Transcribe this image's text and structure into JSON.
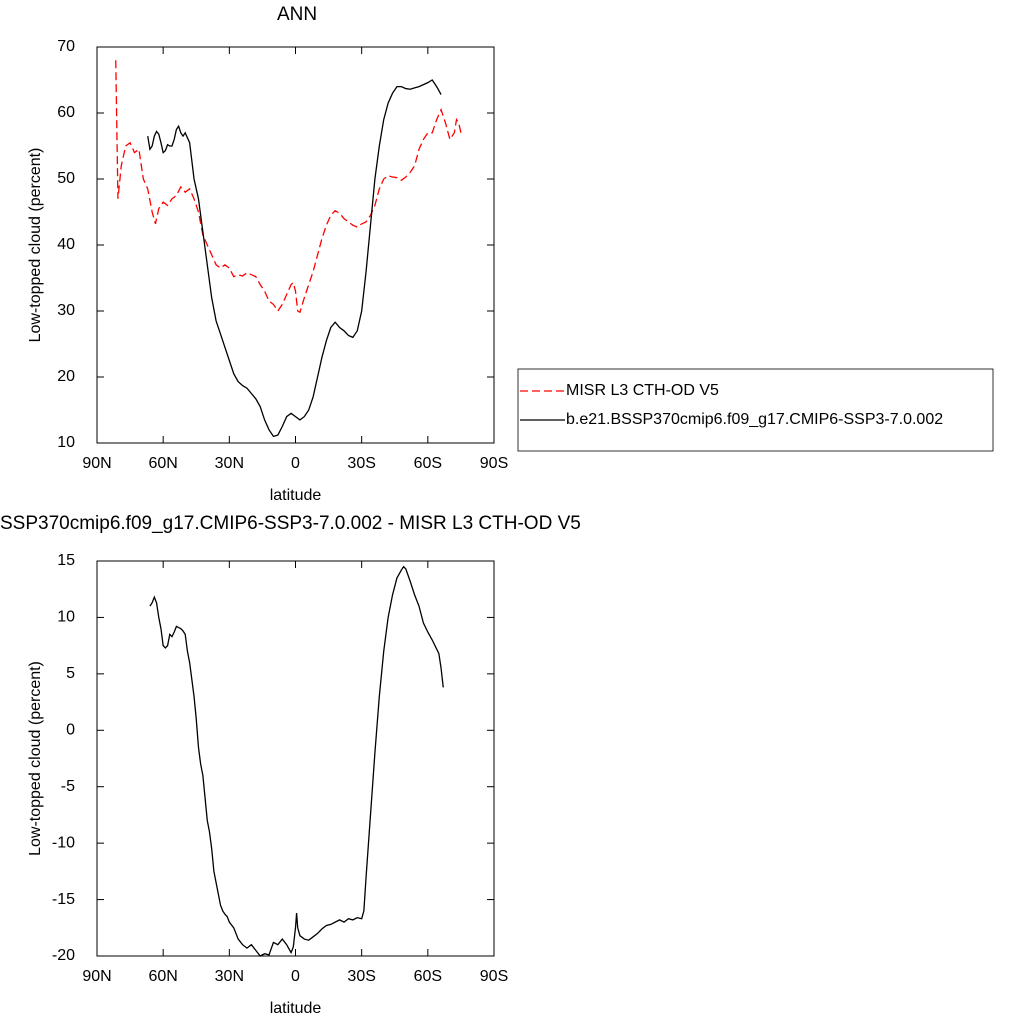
{
  "chart_data": [
    {
      "type": "line",
      "title": "ANN",
      "xlabel": "latitude",
      "ylabel": "Low-topped cloud (percent)",
      "xlim": [
        90,
        -90
      ],
      "xticks": [
        {
          "value": 90,
          "label": "90N"
        },
        {
          "value": 60,
          "label": "60N"
        },
        {
          "value": 30,
          "label": "30N"
        },
        0,
        {
          "value": -30,
          "label": "30S"
        },
        {
          "value": -60,
          "label": "60S"
        },
        {
          "value": -90,
          "label": "90S"
        }
      ],
      "ylim": [
        10,
        70
      ],
      "yticks": [
        10,
        20,
        30,
        40,
        50,
        60,
        70
      ],
      "legend": "right",
      "series": [
        {
          "name": "MISR L3 CTH-OD V5",
          "color": "#ff0000",
          "style": "dashed",
          "x": [
            81.5,
            80.5,
            79,
            77,
            75,
            73,
            71,
            69,
            67,
            65,
            63.5,
            62,
            60,
            58,
            56,
            54,
            52,
            50,
            48,
            46,
            44,
            42,
            40,
            38,
            36,
            34,
            32,
            30,
            28,
            26,
            24,
            22,
            20,
            18,
            16,
            14,
            12,
            10,
            8,
            6,
            4,
            2,
            1,
            0,
            -1,
            -2,
            -4,
            -6,
            -8,
            -10,
            -12,
            -14,
            -16,
            -18,
            -20,
            -22,
            -24,
            -26,
            -28,
            -30,
            -32,
            -34,
            -36,
            -38,
            -40,
            -42,
            -44,
            -46,
            -48,
            -50,
            -52,
            -54,
            -56,
            -58,
            -60,
            -62,
            -64,
            -66,
            -68,
            -70,
            -72,
            -73,
            -74,
            -75
          ],
          "values": [
            68,
            47,
            52,
            55,
            55.5,
            54,
            54.5,
            50,
            48.5,
            45,
            43.2,
            45.5,
            46.5,
            46,
            47,
            47.5,
            48.8,
            48,
            48.5,
            47,
            45,
            41.5,
            40,
            38.5,
            37,
            36.5,
            37,
            36.5,
            35.2,
            35.5,
            35.3,
            35.8,
            35.5,
            35.2,
            34,
            33,
            31.5,
            31,
            30,
            31,
            32.5,
            34,
            34.3,
            33,
            30,
            29.8,
            32,
            34,
            36,
            38.5,
            41,
            43,
            44.5,
            45.2,
            44.8,
            44,
            43.5,
            43,
            42.7,
            43.2,
            43.5,
            44.5,
            46,
            48.5,
            50,
            50.5,
            50.3,
            50.2,
            49.8,
            50.3,
            51,
            52,
            54.5,
            56,
            57,
            57,
            59,
            60.5,
            58.5,
            56,
            57,
            59,
            58.5,
            57
          ]
        },
        {
          "name": "b.e21.BSSP370cmip6.f09_g17.CMIP6-SSP3-7.0.002",
          "color": "#000000",
          "style": "solid",
          "x": [
            67,
            66,
            65,
            64,
            63,
            62,
            61,
            60,
            59,
            58,
            57,
            56,
            55,
            54,
            53,
            52,
            51,
            50,
            48,
            46,
            44,
            42,
            40,
            38,
            36,
            34,
            32,
            30,
            28,
            26,
            24,
            22,
            20,
            18,
            16,
            14,
            12,
            10,
            8,
            6,
            4,
            2,
            0,
            -2,
            -4,
            -6,
            -8,
            -10,
            -12,
            -14,
            -16,
            -18,
            -20,
            -22,
            -24,
            -26,
            -28,
            -30,
            -32,
            -34,
            -36,
            -38,
            -40,
            -42,
            -44,
            -46,
            -48,
            -50,
            -52,
            -54,
            -56,
            -58,
            -60,
            -62,
            -64,
            -66
          ],
          "values": [
            56.5,
            54.5,
            55,
            56.5,
            57.2,
            56.8,
            55.5,
            54,
            54.3,
            55.2,
            55,
            55,
            56,
            57.5,
            58,
            57,
            56.5,
            57,
            55.5,
            50,
            47,
            42,
            37,
            32,
            28.5,
            26.5,
            24.5,
            22.5,
            20.5,
            19.3,
            18.7,
            18.3,
            17.5,
            16.7,
            15.5,
            13.5,
            12,
            11,
            11.2,
            12.5,
            14,
            14.5,
            14,
            13.5,
            14,
            15,
            17,
            20,
            23,
            25.5,
            27.5,
            28.3,
            27.5,
            27,
            26.3,
            26,
            27,
            30,
            36,
            43,
            50,
            55,
            59,
            61.5,
            63,
            64,
            64,
            63.7,
            63.6,
            63.8,
            64,
            64.3,
            64.6,
            65,
            64,
            62.8
          ]
        }
      ]
    },
    {
      "type": "line",
      "title": "SSP370cmip6.f09_g17.CMIP6-SSP3-7.0.002 - MISR L3 CTH-OD V5",
      "xlabel": "latitude",
      "ylabel": "Low-topped cloud (percent)",
      "xlim": [
        90,
        -90
      ],
      "xticks": [
        {
          "value": 90,
          "label": "90N"
        },
        {
          "value": 60,
          "label": "60N"
        },
        {
          "value": 30,
          "label": "30N"
        },
        0,
        {
          "value": -30,
          "label": "30S"
        },
        {
          "value": -60,
          "label": "60S"
        },
        {
          "value": -90,
          "label": "90S"
        }
      ],
      "ylim": [
        -20,
        15
      ],
      "yticks": [
        -20,
        -15,
        -10,
        -5,
        0,
        5,
        10,
        15
      ],
      "series": [
        {
          "color": "#000000",
          "style": "solid",
          "x": [
            66,
            65,
            64,
            63,
            62,
            61,
            60,
            59,
            58,
            57,
            56,
            55,
            54,
            53,
            52,
            51,
            50,
            49,
            48,
            47,
            46,
            45,
            44,
            43,
            42,
            41,
            40,
            39,
            38,
            37,
            36,
            35,
            34,
            33,
            32,
            31,
            30,
            28,
            26,
            24,
            22,
            20,
            18,
            16,
            14,
            12,
            10,
            8,
            6,
            4,
            2,
            1,
            0,
            -0.5,
            -1,
            -2,
            -4,
            -6,
            -8,
            -10,
            -12,
            -14,
            -16,
            -18,
            -20,
            -22,
            -24,
            -26,
            -28,
            -30,
            -31,
            -32,
            -34,
            -36,
            -38,
            -40,
            -42,
            -44,
            -46,
            -48,
            -49,
            -50,
            -52,
            -54,
            -56,
            -58,
            -60,
            -62,
            -64,
            -65,
            -66,
            -67
          ],
          "values": [
            11,
            11.3,
            11.8,
            11.3,
            10,
            9,
            7.5,
            7.3,
            7.5,
            8.5,
            8.3,
            8.7,
            9.2,
            9.1,
            9,
            8.8,
            8.5,
            7,
            6,
            4.5,
            3,
            1,
            -1.5,
            -3,
            -4,
            -6,
            -8,
            -9,
            -10.5,
            -12.5,
            -13.5,
            -14.5,
            -15.5,
            -16,
            -16.3,
            -16.5,
            -17,
            -17.5,
            -18.5,
            -19,
            -19.3,
            -19,
            -19.5,
            -20,
            -19.8,
            -19.9,
            -18.8,
            -19,
            -18.5,
            -19,
            -19.7,
            -19.2,
            -17.5,
            -16.2,
            -17.5,
            -18.2,
            -18.5,
            -18.6,
            -18.3,
            -18,
            -17.6,
            -17.3,
            -17.2,
            -17,
            -16.8,
            -17,
            -16.7,
            -16.8,
            -16.6,
            -16.7,
            -16,
            -13,
            -7.5,
            -2,
            3,
            7,
            10,
            12,
            13.5,
            14.2,
            14.5,
            14.3,
            13.2,
            12,
            11,
            9.5,
            8.7,
            8,
            7.2,
            6.8,
            5.5,
            3.8
          ]
        }
      ]
    }
  ]
}
